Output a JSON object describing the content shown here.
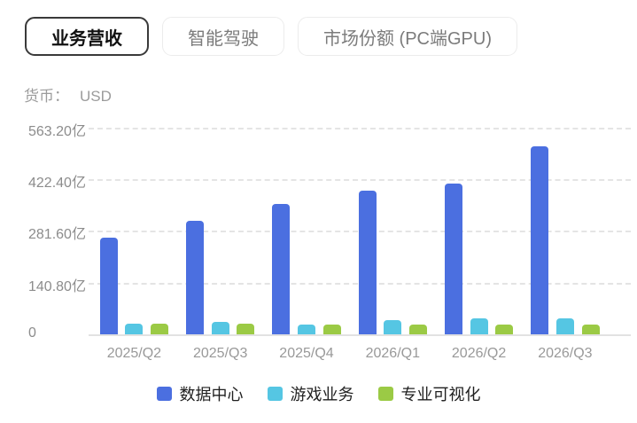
{
  "tabs": [
    {
      "label": "业务营收",
      "selected": true
    },
    {
      "label": "智能驾驶",
      "selected": false
    },
    {
      "label": "市场份额 (PC端GPU)",
      "selected": false
    }
  ],
  "currency": {
    "label": "货币：",
    "value": "USD"
  },
  "colors": {
    "series_blue": "#4B6FE0",
    "series_cyan": "#55C6E3",
    "series_green": "#9BCA45",
    "gridline": "#E4E4E4",
    "axis_line": "#E2E2E2",
    "tick_text": "#8C8C8C",
    "legend_text": "#1F1F1F",
    "selected_tab_border": "#3A3A3A"
  },
  "chart_data": {
    "type": "bar",
    "title": "",
    "xlabel": "",
    "ylabel": "",
    "unit": "亿",
    "grid": "horizontal-dashed",
    "legend_position": "bottom",
    "categories": [
      "2025/Q2",
      "2025/Q3",
      "2025/Q4",
      "2026/Q1",
      "2026/Q2",
      "2026/Q3"
    ],
    "series": [
      {
        "key": "data-center",
        "name": "数据中心",
        "color": "#4B6FE0",
        "values": [
          263,
          308,
          356,
          391,
          411,
          512
        ]
      },
      {
        "key": "gaming",
        "name": "游戏业务",
        "color": "#55C6E3",
        "values": [
          29,
          33,
          26,
          38,
          43,
          43
        ]
      },
      {
        "key": "pro-viz",
        "name": "专业可视化",
        "color": "#9BCA45",
        "values": [
          28,
          28,
          26,
          26,
          27,
          27
        ]
      }
    ],
    "y_axis": {
      "max": 563.2,
      "interval": 140.8,
      "ticks": [
        {
          "label": "563.20亿",
          "value": 563.2
        },
        {
          "label": "422.40亿",
          "value": 422.4
        },
        {
          "label": "281.60亿",
          "value": 281.6
        },
        {
          "label": "140.80亿",
          "value": 140.8
        },
        {
          "label": "0",
          "value": 0
        }
      ]
    },
    "ylim": [
      0,
      563.2
    ]
  }
}
